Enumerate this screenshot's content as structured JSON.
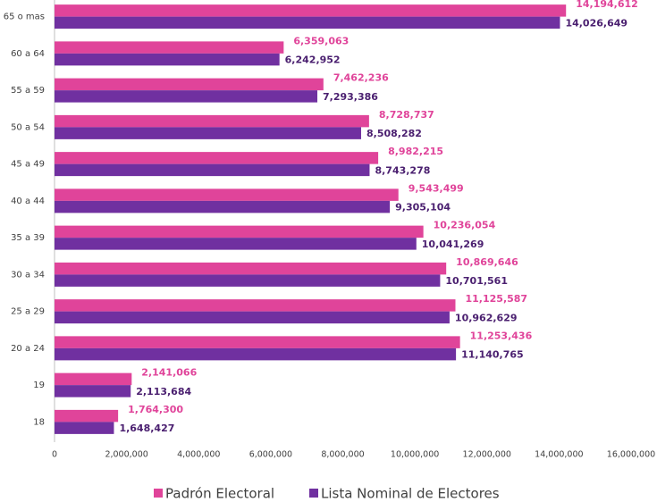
{
  "chart_data": {
    "type": "bar",
    "orientation": "horizontal",
    "categories": [
      "65 o mas",
      "60 a 64",
      "55 a 59",
      "50 a 54",
      "45 a 49",
      "40 a 44",
      "35 a 39",
      "30 a 34",
      "25 a 29",
      "20 a 24",
      "19",
      "18"
    ],
    "series": [
      {
        "name": "Padrón Electoral",
        "color": "#e0449a",
        "values": [
          14194612,
          6359063,
          7462236,
          8728737,
          8982215,
          9543499,
          10236054,
          10869646,
          11125587,
          11253436,
          2141066,
          1764300
        ],
        "value_labels": [
          "14,194,612",
          "6,359,063",
          "7,462,236",
          "8,728,737",
          "8,982,215",
          "9,543,499",
          "10,236,054",
          "10,869,646",
          "11,125,587",
          "11,253,436",
          "2,141,066",
          "1,764,300"
        ]
      },
      {
        "name": "Lista Nominal de Electores",
        "color": "#7030a0",
        "values": [
          14026649,
          6242952,
          7293386,
          8508282,
          8743278,
          9305104,
          10041269,
          10701561,
          10962629,
          11140765,
          2113684,
          1648427
        ],
        "value_labels": [
          "14,026,649",
          "6,242,952",
          "7,293,386",
          "8,508,282",
          "8,743,278",
          "9,305,104",
          "10,041,269",
          "10,701,561",
          "10,962,629",
          "11,140,765",
          "2,113,684",
          "1,648,427"
        ]
      }
    ],
    "xlim": [
      0,
      16000000
    ],
    "xticks": [
      0,
      {
        "value": 2000000,
        "label": "2,000,000"
      },
      {
        "value": 4000000,
        "label": "4,000,000"
      },
      {
        "value": 6000000,
        "label": "6,000,000"
      },
      {
        "value": 8000000,
        "label": "8,000,000"
      },
      {
        "value": 10000000,
        "label": "10,000,000"
      },
      {
        "value": 12000000,
        "label": "12,000,000"
      },
      {
        "value": 14000000,
        "label": "14,000,000"
      },
      {
        "value": 16000000,
        "label": "16,000,000"
      }
    ],
    "legend": "bottom"
  }
}
